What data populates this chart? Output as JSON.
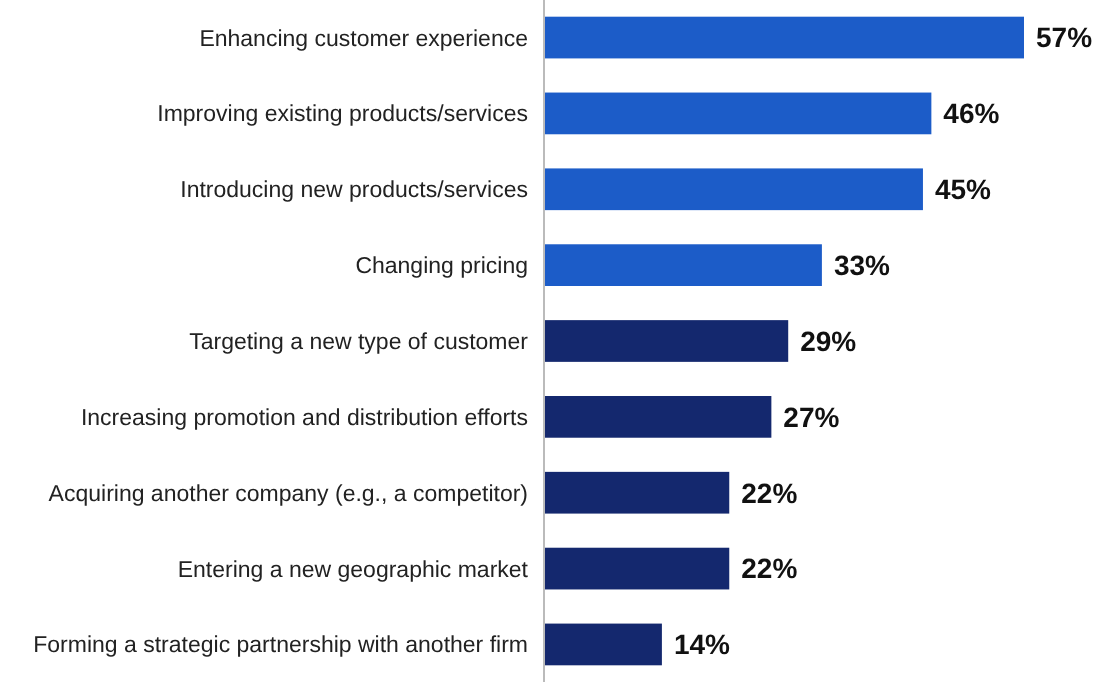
{
  "chart_data": {
    "type": "bar",
    "orientation": "horizontal",
    "categories": [
      "Enhancing customer experience",
      "Improving existing products/services",
      "Introducing new products/services",
      "Changing pricing",
      "Targeting a new type of customer",
      "Increasing promotion and distribution efforts",
      "Acquiring another company (e.g., a competitor)",
      "Entering a new geographic market",
      "Forming a strategic partnership with another firm"
    ],
    "values": [
      57,
      46,
      45,
      33,
      29,
      27,
      22,
      22,
      14
    ],
    "value_labels": [
      "57%",
      "46%",
      "45%",
      "33%",
      "29%",
      "27%",
      "22%",
      "22%",
      "14%"
    ],
    "colors": [
      "#1c5cc8",
      "#1c5cc8",
      "#1c5cc8",
      "#1c5cc8",
      "#14286e",
      "#14286e",
      "#14286e",
      "#14286e",
      "#14286e"
    ]
  }
}
